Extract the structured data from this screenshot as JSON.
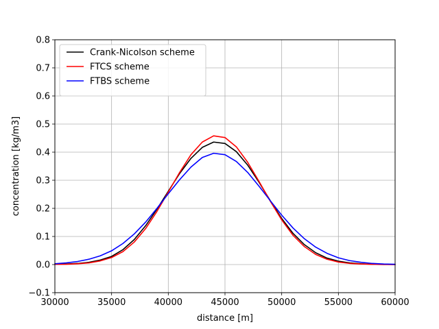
{
  "chart_data": {
    "type": "line",
    "title": "",
    "xlabel": "distance [m]",
    "ylabel": "concentration [kg/m3]",
    "xlim": [
      30000,
      60000
    ],
    "ylim": [
      -0.1,
      0.8
    ],
    "xticks": [
      30000,
      35000,
      40000,
      45000,
      50000,
      55000,
      60000
    ],
    "xtick_labels": [
      "30000",
      "35000",
      "40000",
      "45000",
      "50000",
      "55000",
      "60000"
    ],
    "yticks": [
      -0.1,
      0.0,
      0.1,
      0.2,
      0.3,
      0.4,
      0.5,
      0.6,
      0.7,
      0.8
    ],
    "ytick_labels": [
      "−0.1",
      "0.0",
      "0.1",
      "0.2",
      "0.3",
      "0.4",
      "0.5",
      "0.6",
      "0.7",
      "0.8"
    ],
    "grid": true,
    "legend_position": "top-left",
    "x": [
      30000,
      31000,
      32000,
      33000,
      34000,
      35000,
      36000,
      37000,
      38000,
      39000,
      40000,
      41000,
      42000,
      43000,
      44000,
      45000,
      46000,
      47000,
      48000,
      49000,
      50000,
      51000,
      52000,
      53000,
      54000,
      55000,
      56000,
      57000,
      58000,
      59000,
      60000
    ],
    "series": [
      {
        "name": "Crank-Nicolson scheme",
        "color": "#000000",
        "values": [
          0.001,
          0.002,
          0.004,
          0.008,
          0.016,
          0.029,
          0.053,
          0.089,
          0.138,
          0.197,
          0.261,
          0.324,
          0.378,
          0.417,
          0.436,
          0.431,
          0.402,
          0.354,
          0.293,
          0.227,
          0.164,
          0.111,
          0.071,
          0.042,
          0.023,
          0.012,
          0.006,
          0.003,
          0.001,
          0.001,
          0.0
        ]
      },
      {
        "name": "FTCS scheme",
        "color": "#ff0000",
        "values": [
          0.001,
          0.001,
          0.003,
          0.006,
          0.013,
          0.025,
          0.046,
          0.08,
          0.128,
          0.189,
          0.258,
          0.328,
          0.391,
          0.436,
          0.458,
          0.452,
          0.419,
          0.364,
          0.296,
          0.225,
          0.159,
          0.104,
          0.064,
          0.036,
          0.019,
          0.009,
          0.004,
          0.002,
          0.001,
          0.0,
          0.0
        ]
      },
      {
        "name": "FTBS scheme",
        "color": "#0000ff",
        "values": [
          0.003,
          0.006,
          0.011,
          0.019,
          0.031,
          0.049,
          0.075,
          0.109,
          0.151,
          0.2,
          0.252,
          0.302,
          0.347,
          0.381,
          0.396,
          0.391,
          0.367,
          0.328,
          0.279,
          0.227,
          0.176,
          0.13,
          0.092,
          0.062,
          0.04,
          0.024,
          0.014,
          0.008,
          0.004,
          0.002,
          0.001
        ]
      }
    ]
  }
}
